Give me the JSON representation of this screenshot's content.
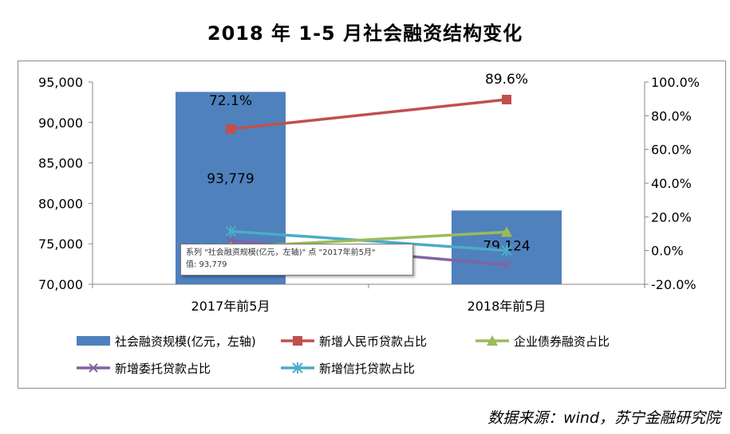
{
  "title": "2018 年 1-5 月社会融资结构变化",
  "source": "数据来源：wind，苏宁金融研究院",
  "tooltip": {
    "line1": "系列 \"社会融资规模(亿元，左轴)\" 点 \"2017年前5月\"",
    "line2": "值: 93,779"
  },
  "chart_data": {
    "type": "bar",
    "categories": [
      "2017年前5月",
      "2018年前5月"
    ],
    "left_axis": {
      "min": 70000,
      "max": 95000,
      "step": 5000,
      "tick_labels": [
        "70,000",
        "75,000",
        "80,000",
        "85,000",
        "90,000",
        "95,000"
      ]
    },
    "right_axis": {
      "min": -20,
      "max": 100,
      "step": 20,
      "tick_labels": [
        "-20.0%",
        "0.0%",
        "20.0%",
        "40.0%",
        "60.0%",
        "80.0%",
        "100.0%"
      ]
    },
    "grid": false,
    "legend_position": "bottom",
    "series": [
      {
        "name": "社会融资规模(亿元，左轴)",
        "type": "bar",
        "axis": "left",
        "values": [
          93779,
          79124
        ],
        "data_labels": [
          "93,779",
          "79,124"
        ],
        "color": "#4f81bd"
      },
      {
        "name": "新增人民币贷款占比",
        "type": "line",
        "axis": "right",
        "marker": "square",
        "values": [
          72.1,
          89.6
        ],
        "data_labels": [
          "72.1%",
          "89.6%"
        ],
        "color": "#c0504d"
      },
      {
        "name": "企业债券融资占比",
        "type": "line",
        "axis": "right",
        "marker": "triangle",
        "values": [
          2.0,
          11.0
        ],
        "data_labels": [
          "",
          ""
        ],
        "color": "#9bbb59"
      },
      {
        "name": "新增委托贷款占比",
        "type": "line",
        "axis": "right",
        "marker": "x",
        "values": [
          6.0,
          -8.5
        ],
        "data_labels": [
          "",
          ""
        ],
        "color": "#8064a2"
      },
      {
        "name": "新增信托贷款占比",
        "type": "line",
        "axis": "right",
        "marker": "star",
        "values": [
          11.5,
          0.0
        ],
        "data_labels": [
          "",
          ""
        ],
        "color": "#4bacc6"
      }
    ]
  }
}
